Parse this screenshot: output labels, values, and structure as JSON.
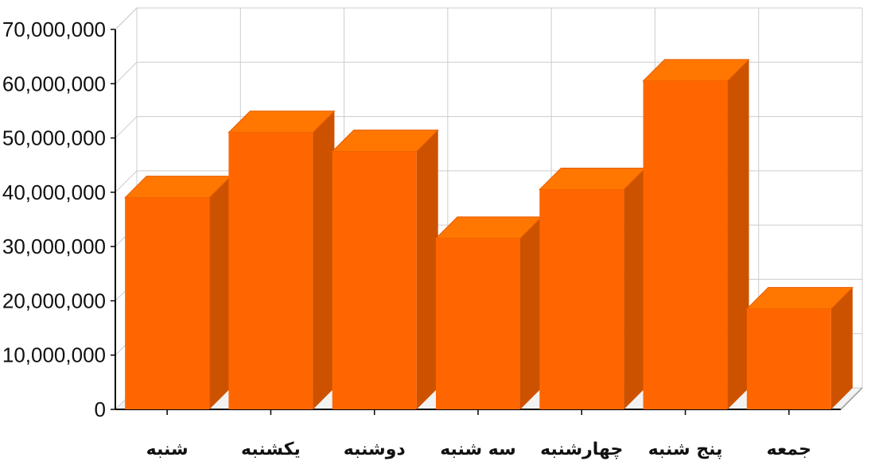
{
  "chart_data": {
    "type": "bar",
    "style": "3d",
    "title": "",
    "xlabel": "",
    "ylabel": "",
    "categories": [
      "شنبه",
      "یکشنبه",
      "دوشنبه",
      "سه شنبه",
      "چهارشنبه",
      "پنج شنبه",
      "جمعه"
    ],
    "values": [
      39000000,
      51000000,
      47500000,
      31500000,
      40500000,
      60500000,
      18500000
    ],
    "ylim": [
      0,
      70000000
    ],
    "yticks": [
      "0",
      "10,000,000",
      "20,000,000",
      "30,000,000",
      "40,000,000",
      "50,000,000",
      "60,000,000",
      "70,000,000"
    ],
    "grid": true,
    "legend": "none",
    "colors": {
      "bar_front": "#ff6600",
      "bar_top": "#ff7700",
      "bar_side": "#cc5200",
      "grid": "#cccccc",
      "axis": "#000000"
    }
  }
}
